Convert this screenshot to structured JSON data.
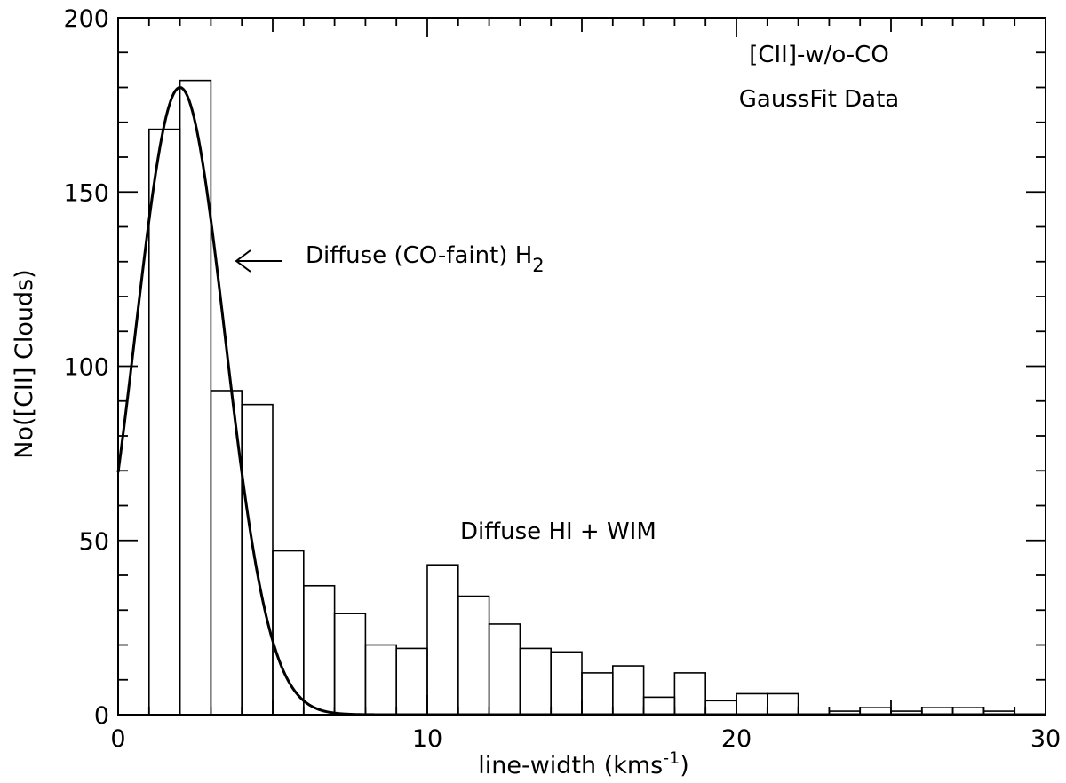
{
  "chart_data": {
    "type": "bar",
    "title": "",
    "xlabel": "line-width (kms",
    "xlabel_sup": "-1",
    "xlabel_close": ")",
    "ylabel": "No([CII] Clouds)",
    "xlim": [
      0,
      30
    ],
    "ylim": [
      0,
      200
    ],
    "x_ticks": [
      "0",
      "10",
      "20",
      "30"
    ],
    "y_ticks": [
      "0",
      "50",
      "100",
      "150",
      "200"
    ],
    "bin_width": 1,
    "bins": [
      {
        "x": 0,
        "count": 0
      },
      {
        "x": 1,
        "count": 168
      },
      {
        "x": 2,
        "count": 182
      },
      {
        "x": 3,
        "count": 93
      },
      {
        "x": 4,
        "count": 89
      },
      {
        "x": 5,
        "count": 47
      },
      {
        "x": 6,
        "count": 37
      },
      {
        "x": 7,
        "count": 29
      },
      {
        "x": 8,
        "count": 20
      },
      {
        "x": 9,
        "count": 19
      },
      {
        "x": 10,
        "count": 43
      },
      {
        "x": 11,
        "count": 34
      },
      {
        "x": 12,
        "count": 26
      },
      {
        "x": 13,
        "count": 19
      },
      {
        "x": 14,
        "count": 18
      },
      {
        "x": 15,
        "count": 12
      },
      {
        "x": 16,
        "count": 14
      },
      {
        "x": 17,
        "count": 5
      },
      {
        "x": 18,
        "count": 12
      },
      {
        "x": 19,
        "count": 4
      },
      {
        "x": 20,
        "count": 6
      },
      {
        "x": 21,
        "count": 6
      },
      {
        "x": 22,
        "count": 0
      },
      {
        "x": 23,
        "count": 1
      },
      {
        "x": 24,
        "count": 2
      },
      {
        "x": 25,
        "count": 1
      },
      {
        "x": 26,
        "count": 2
      },
      {
        "x": 27,
        "count": 2
      },
      {
        "x": 28,
        "count": 1
      },
      {
        "x": 29,
        "count": 0
      }
    ],
    "gauss_fit": {
      "amplitude": 180,
      "center": 2.0,
      "sigma": 1.45
    },
    "grid": false,
    "annotations": [
      {
        "id": "legend-line1",
        "text": "[CII]-w/o-CO"
      },
      {
        "id": "legend-line2",
        "text": "GaussFit Data"
      },
      {
        "id": "annot-h2",
        "text": "Diffuse (CO-faint) H",
        "sub": "2"
      },
      {
        "id": "annot-hi",
        "text": "Diffuse HI + WIM"
      }
    ]
  }
}
